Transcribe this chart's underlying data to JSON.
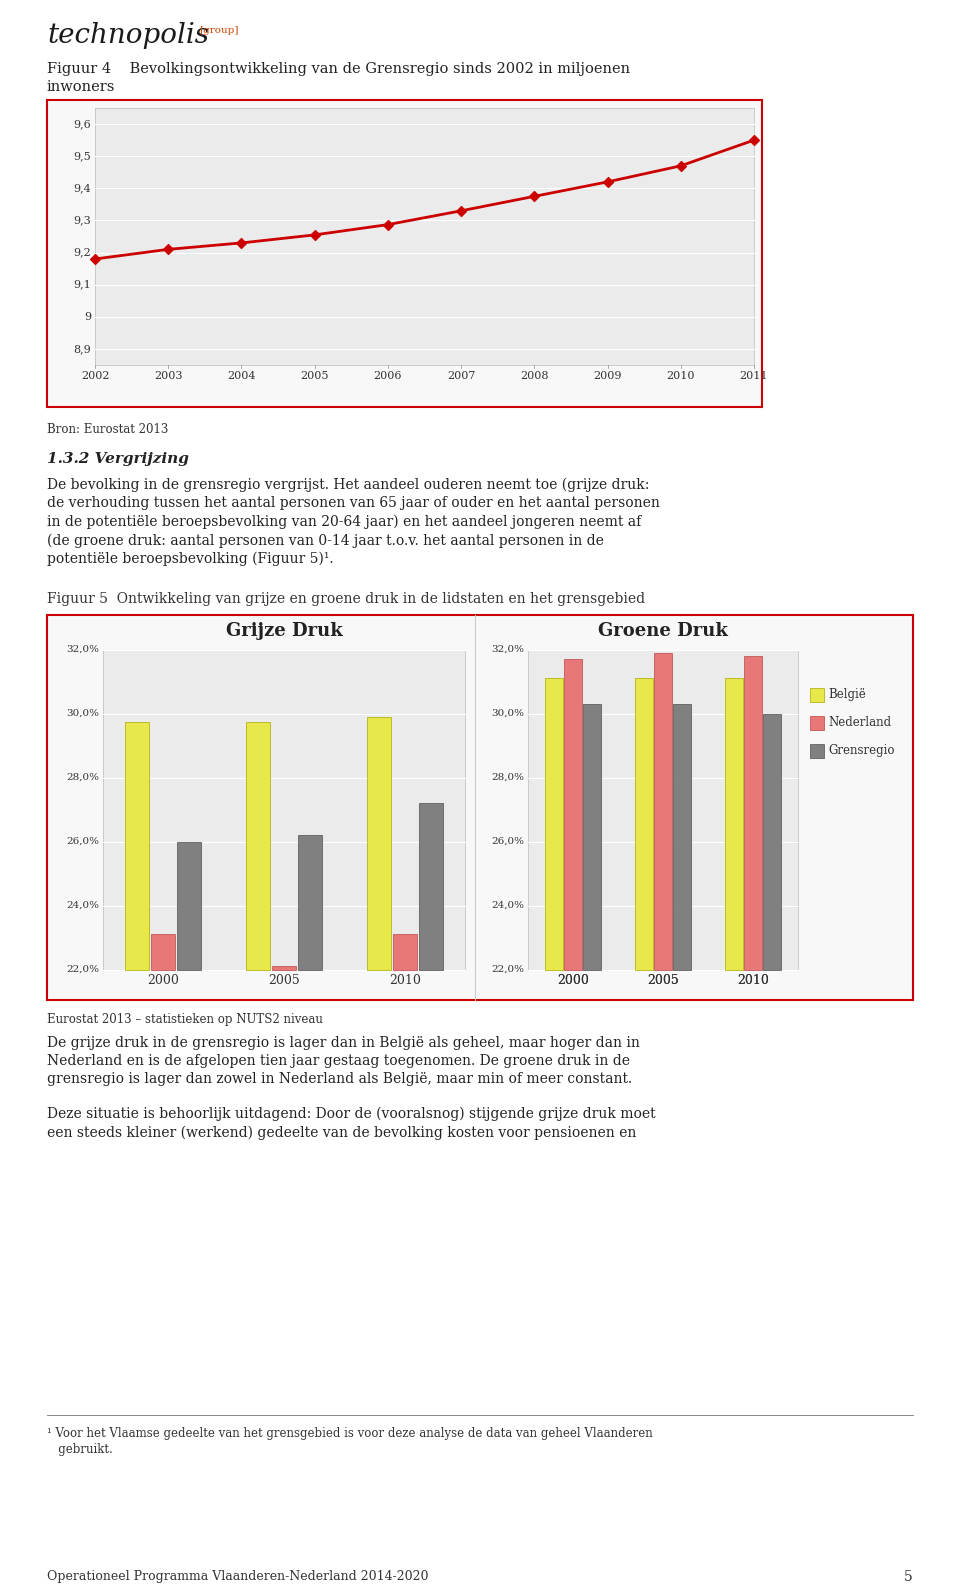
{
  "page_bg": "#ffffff",
  "fig4_title_part1": "Figuur 4    Bevolkingsontwikkeling van de Grensregio sinds 2002 in miljoenen",
  "fig4_title_part2": "inwoners",
  "fig4_years": [
    2002,
    2003,
    2004,
    2005,
    2006,
    2007,
    2008,
    2009,
    2010,
    2011
  ],
  "fig4_values": [
    9.18,
    9.21,
    9.23,
    9.255,
    9.287,
    9.33,
    9.375,
    9.42,
    9.47,
    9.55
  ],
  "fig4_ylim": [
    8.85,
    9.65
  ],
  "fig4_yticks": [
    8.9,
    9.0,
    9.1,
    9.2,
    9.3,
    9.4,
    9.5,
    9.6
  ],
  "fig4_ytick_labels": [
    "8,9",
    "9",
    "9,1",
    "9,2",
    "9,3",
    "9,4",
    "9,5",
    "9,6"
  ],
  "fig4_line_color": "#cc0000",
  "fig4_marker_color": "#cc0000",
  "fig4_source": "Bron: Eurostat 2013",
  "fig4_border_color": "#cc0000",
  "fig4_bg": "#ebebeb",
  "fig4_grid_color": "#ffffff",
  "section_title": "1.3.2 Vergrijzing",
  "paragraph1_lines": [
    "De bevolking in de grensregio vergrijst. Het aandeel ouderen neemt toe (grijze druk:",
    "de verhouding tussen het aantal personen van 65 jaar of ouder en het aantal personen",
    "in de potentiële beroepsbevolking van 20-64 jaar) en het aandeel jongeren neemt af",
    "(de groene druk: aantal personen van 0-14 jaar t.o.v. het aantal personen in de",
    "potentiële beroepsbevolking (Figuur 5)¹."
  ],
  "fig5_title_left": "Grijze Druk",
  "fig5_title_right": "Groene Druk",
  "fig5_caption": "Figuur 5  Ontwikkeling van grijze en groene druk in de lidstaten en het grensgebied",
  "fig5_source": "Eurostat 2013 – statistieken op NUTS2 niveau",
  "fig5_border_color": "#cc0000",
  "fig5_bg": "#ebebeb",
  "fig5_years": [
    "2000",
    "2005",
    "2010"
  ],
  "fig5_ylim": [
    0.22,
    0.32
  ],
  "fig5_yticks": [
    0.22,
    0.24,
    0.26,
    0.28,
    0.3,
    0.32
  ],
  "fig5_ytick_labels": [
    "22,0%",
    "24,0%",
    "26,0%",
    "28,0%",
    "30,0%",
    "32,0%"
  ],
  "grijze_belgie": [
    0.2975,
    0.2975,
    0.299
  ],
  "grijze_nederland": [
    0.231,
    0.221,
    0.231
  ],
  "grijze_grensregio": [
    0.26,
    0.262,
    0.272
  ],
  "groene_belgie": [
    0.311,
    0.311,
    0.311
  ],
  "groene_nederland": [
    0.317,
    0.319,
    0.318
  ],
  "groene_grensregio": [
    0.303,
    0.303,
    0.3
  ],
  "color_belgie": "#e8e84a",
  "color_nederland": "#e87878",
  "color_grensregio": "#808080",
  "edge_belgie": "#aaa800",
  "edge_nederland": "#bb4444",
  "edge_grensregio": "#505050",
  "legend_labels": [
    "België",
    "Nederland",
    "Grensregio"
  ],
  "para2_lines": [
    "De grijze druk in de grensregio is lager dan in België als geheel, maar hoger dan in",
    "Nederland en is de afgelopen tien jaar gestaag toegenomen. De groene druk in de",
    "grensregio is lager dan zowel in Nederland als België, maar min of meer constant."
  ],
  "para3_lines": [
    "Deze situatie is behoorlijk uitdagend: Door de (vooralsnog) stijgende grijze druk moet",
    "een steeds kleiner (werkend) gedeelte van de bevolking kosten voor pensioenen en"
  ],
  "footnote_lines": [
    "¹ Voor het Vlaamse gedeelte van het grensgebied is voor deze analyse de data van geheel Vlaanderen",
    "   gebruikt."
  ],
  "footer": "Operationeel Programma Vlaanderen-Nederland 2014-2020",
  "page_num": "5"
}
